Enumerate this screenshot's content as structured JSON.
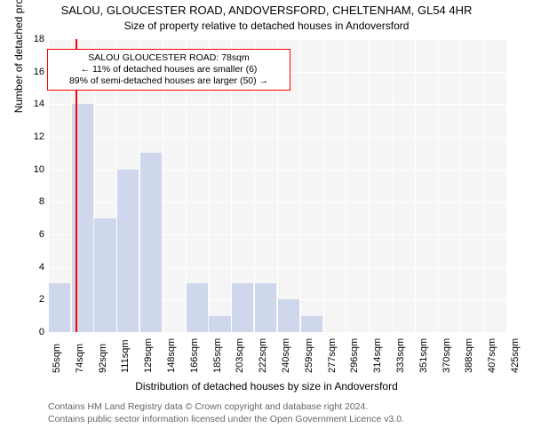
{
  "chart": {
    "type": "histogram",
    "title_main": "SALOU, GLOUCESTER ROAD, ANDOVERSFORD, CHELTENHAM, GL54 4HR",
    "title_sub": "Size of property relative to detached houses in Andoversford",
    "title_fontsize": 13,
    "subtitle_fontsize": 12,
    "ylabel": "Number of detached properties",
    "xlabel": "Distribution of detached houses by size in Andoversford",
    "label_fontsize": 12,
    "tick_fontsize": 11,
    "background_color": "#ffffff",
    "plot_bg_color": "#f5f5f5",
    "grid_color": "#ffffff",
    "bar_color": "#cfd7ed",
    "bar_border": "#cfd7ed",
    "marker_line_color": "#ff0000",
    "annotation_border": "#ff0000",
    "ylim": [
      0,
      18
    ],
    "ytick_step": 2,
    "xticks": [
      "55sqm",
      "74sqm",
      "92sqm",
      "111sqm",
      "129sqm",
      "148sqm",
      "166sqm",
      "185sqm",
      "203sqm",
      "222sqm",
      "240sqm",
      "259sqm",
      "277sqm",
      "296sqm",
      "314sqm",
      "333sqm",
      "351sqm",
      "370sqm",
      "388sqm",
      "407sqm",
      "425sqm"
    ],
    "values": [
      3,
      14,
      7,
      10,
      11,
      0,
      3,
      1,
      3,
      3,
      2,
      1,
      0,
      0,
      0,
      0,
      0,
      0,
      0,
      0
    ],
    "bar_gap_ratio": 0.06,
    "marker_x_index": 1.25,
    "annotation": {
      "line1": "SALOU GLOUCESTER ROAD: 78sqm",
      "line2": "← 11% of detached houses are smaller (6)",
      "line3": "89% of semi-detached houses are larger (50) →",
      "x_index_center": 5.0,
      "y_value": 16.2,
      "fontsize": 10.5
    },
    "footer": {
      "line1": "Contains HM Land Registry data © Crown copyright and database right 2024.",
      "line2": "Contains public sector information licensed under the Open Government Licence v3.0.",
      "color": "#666666",
      "fontsize": 10.5
    }
  }
}
